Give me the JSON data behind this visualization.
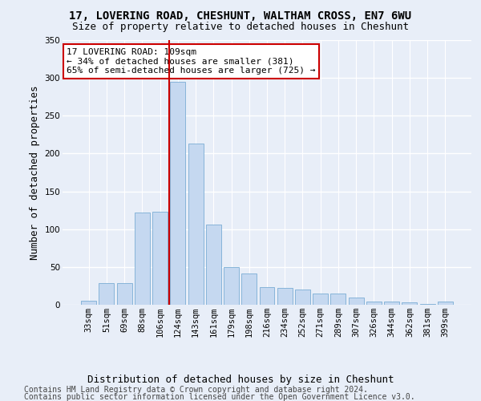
{
  "title": "17, LOVERING ROAD, CHESHUNT, WALTHAM CROSS, EN7 6WU",
  "subtitle": "Size of property relative to detached houses in Cheshunt",
  "xlabel": "Distribution of detached houses by size in Cheshunt",
  "ylabel": "Number of detached properties",
  "categories": [
    "33sqm",
    "51sqm",
    "69sqm",
    "88sqm",
    "106sqm",
    "124sqm",
    "143sqm",
    "161sqm",
    "179sqm",
    "198sqm",
    "216sqm",
    "234sqm",
    "252sqm",
    "271sqm",
    "289sqm",
    "307sqm",
    "326sqm",
    "344sqm",
    "362sqm",
    "381sqm",
    "399sqm"
  ],
  "values": [
    5,
    29,
    29,
    122,
    123,
    295,
    213,
    106,
    50,
    41,
    23,
    22,
    20,
    15,
    15,
    10,
    4,
    4,
    3,
    1,
    4
  ],
  "bar_color": "#c5d8f0",
  "bar_edge_color": "#7aadd4",
  "highlight_index": 4,
  "highlight_color": "#cc0000",
  "ylim": [
    0,
    350
  ],
  "yticks": [
    0,
    50,
    100,
    150,
    200,
    250,
    300,
    350
  ],
  "annotation_text": "17 LOVERING ROAD: 109sqm\n← 34% of detached houses are smaller (381)\n65% of semi-detached houses are larger (725) →",
  "annotation_box_color": "#ffffff",
  "annotation_box_edge": "#cc0000",
  "footer_line1": "Contains HM Land Registry data © Crown copyright and database right 2024.",
  "footer_line2": "Contains public sector information licensed under the Open Government Licence v3.0.",
  "background_color": "#e8eef8",
  "grid_color": "#ffffff",
  "title_fontsize": 10,
  "subtitle_fontsize": 9,
  "axis_label_fontsize": 9,
  "tick_fontsize": 7.5,
  "footer_fontsize": 7,
  "annotation_fontsize": 8
}
